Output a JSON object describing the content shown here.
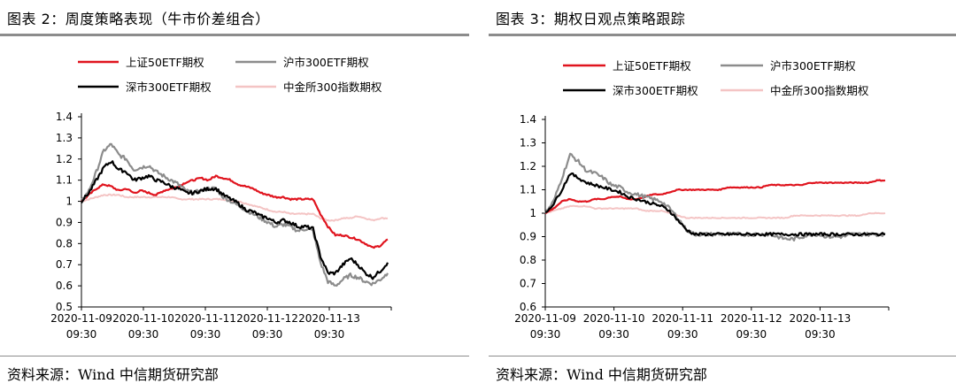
{
  "panels": [
    {
      "title": "图表 2：周度策略表现（牛市价差组合）",
      "source": "资料来源：Wind 中信期货研究部"
    },
    {
      "title": "图表 3：期权日观点策略跟踪",
      "source": "资料来源：Wind 中信期货研究部"
    }
  ],
  "chart_data": [
    {
      "type": "line",
      "title": "图表 2：周度策略表现（牛市价差组合）",
      "ylim": [
        0.5,
        1.4
      ],
      "yticks": [
        "1.4",
        "1.3",
        "1.2",
        "1.1",
        "1",
        "0.9",
        "0.8",
        "0.7",
        "0.6",
        "0.5"
      ],
      "x_date_labels": [
        "2020-11-09",
        "2020-11-10",
        "2020-11-11",
        "2020-11-12",
        "2020-11-13"
      ],
      "x_time_label": "09:30",
      "legend_position": "top",
      "series": [
        {
          "name": "上证50ETF期权",
          "color": "#e0141e",
          "noise": 0.004,
          "values": [
            1.0,
            1.03,
            1.06,
            1.08,
            1.07,
            1.05,
            1.06,
            1.04,
            1.05,
            1.04,
            1.03,
            1.05,
            1.06,
            1.07,
            1.09,
            1.1,
            1.11,
            1.1,
            1.12,
            1.11,
            1.1,
            1.08,
            1.07,
            1.06,
            1.04,
            1.03,
            1.02,
            1.02,
            1.01,
            1.01,
            1.01,
            1.01,
            0.94,
            0.88,
            0.84,
            0.84,
            0.83,
            0.82,
            0.8,
            0.78,
            0.79,
            0.82
          ]
        },
        {
          "name": "沪市300ETF期权",
          "color": "#8c8c8c",
          "noise": 0.009,
          "values": [
            1.0,
            1.05,
            1.14,
            1.24,
            1.27,
            1.22,
            1.2,
            1.15,
            1.16,
            1.17,
            1.14,
            1.12,
            1.1,
            1.08,
            1.05,
            1.04,
            1.05,
            1.06,
            1.06,
            1.02,
            1.0,
            0.98,
            0.96,
            0.94,
            0.92,
            0.9,
            0.88,
            0.89,
            0.88,
            0.86,
            0.87,
            0.86,
            0.71,
            0.62,
            0.6,
            0.63,
            0.65,
            0.64,
            0.62,
            0.61,
            0.63,
            0.66
          ]
        },
        {
          "name": "深市300ETF期权",
          "color": "#000000",
          "noise": 0.008,
          "values": [
            1.0,
            1.04,
            1.1,
            1.16,
            1.19,
            1.15,
            1.14,
            1.1,
            1.11,
            1.12,
            1.1,
            1.09,
            1.07,
            1.06,
            1.04,
            1.04,
            1.05,
            1.06,
            1.06,
            1.03,
            1.01,
            0.99,
            0.96,
            0.95,
            0.93,
            0.92,
            0.9,
            0.91,
            0.9,
            0.88,
            0.88,
            0.87,
            0.74,
            0.66,
            0.66,
            0.7,
            0.73,
            0.7,
            0.66,
            0.64,
            0.67,
            0.71
          ]
        },
        {
          "name": "中金所300指数期权",
          "color": "#f4c4c4",
          "noise": 0.003,
          "values": [
            1.0,
            1.01,
            1.02,
            1.03,
            1.03,
            1.03,
            1.02,
            1.02,
            1.02,
            1.02,
            1.02,
            1.02,
            1.02,
            1.01,
            1.01,
            1.01,
            1.01,
            1.01,
            1.01,
            1.01,
            1.0,
            1.0,
            0.99,
            0.98,
            0.97,
            0.96,
            0.95,
            0.95,
            0.94,
            0.94,
            0.94,
            0.94,
            0.92,
            0.91,
            0.91,
            0.92,
            0.92,
            0.93,
            0.92,
            0.91,
            0.92,
            0.92
          ]
        }
      ]
    },
    {
      "type": "line",
      "title": "图表 3：期权日观点策略跟踪",
      "ylim": [
        0.6,
        1.4
      ],
      "yticks": [
        "1.4",
        "1.3",
        "1.2",
        "1.1",
        "1",
        "0.9",
        "0.8",
        "0.7",
        "0.6"
      ],
      "x_date_labels": [
        "2020-11-09",
        "2020-11-10",
        "2020-11-11",
        "2020-11-12",
        "2020-11-13"
      ],
      "x_time_label": "09:30",
      "legend_position": "top",
      "series": [
        {
          "name": "上证50ETF期权",
          "color": "#e0141e",
          "noise": 0.002,
          "values": [
            1.0,
            1.02,
            1.05,
            1.06,
            1.05,
            1.05,
            1.06,
            1.06,
            1.07,
            1.07,
            1.06,
            1.06,
            1.07,
            1.08,
            1.08,
            1.09,
            1.1,
            1.1,
            1.1,
            1.1,
            1.1,
            1.1,
            1.11,
            1.11,
            1.11,
            1.11,
            1.11,
            1.12,
            1.12,
            1.12,
            1.12,
            1.12,
            1.13,
            1.13,
            1.13,
            1.13,
            1.13,
            1.13,
            1.13,
            1.13,
            1.14,
            1.14
          ]
        },
        {
          "name": "沪市300ETF期权",
          "color": "#8c8c8c",
          "noise": 0.008,
          "values": [
            1.0,
            1.05,
            1.15,
            1.25,
            1.22,
            1.18,
            1.17,
            1.15,
            1.12,
            1.11,
            1.09,
            1.08,
            1.07,
            1.06,
            1.05,
            1.02,
            0.98,
            0.93,
            0.91,
            0.91,
            0.91,
            0.91,
            0.91,
            0.91,
            0.91,
            0.91,
            0.91,
            0.91,
            0.9,
            0.89,
            0.89,
            0.9,
            0.91,
            0.91,
            0.9,
            0.9,
            0.9,
            0.91,
            0.91,
            0.91,
            0.91,
            0.91
          ]
        },
        {
          "name": "深市300ETF期权",
          "color": "#000000",
          "noise": 0.006,
          "values": [
            1.0,
            1.04,
            1.1,
            1.17,
            1.15,
            1.13,
            1.12,
            1.11,
            1.1,
            1.09,
            1.07,
            1.06,
            1.05,
            1.04,
            1.03,
            1.01,
            0.97,
            0.93,
            0.91,
            0.91,
            0.91,
            0.91,
            0.91,
            0.91,
            0.91,
            0.91,
            0.91,
            0.91,
            0.91,
            0.91,
            0.91,
            0.91,
            0.91,
            0.91,
            0.91,
            0.91,
            0.91,
            0.91,
            0.91,
            0.91,
            0.91,
            0.91
          ]
        },
        {
          "name": "中金所300指数期权",
          "color": "#f4c4c4",
          "noise": 0.002,
          "values": [
            1.0,
            1.01,
            1.02,
            1.03,
            1.03,
            1.03,
            1.02,
            1.02,
            1.02,
            1.02,
            1.02,
            1.02,
            1.01,
            1.01,
            1.01,
            1.0,
            0.99,
            0.98,
            0.98,
            0.98,
            0.98,
            0.98,
            0.98,
            0.98,
            0.98,
            0.98,
            0.98,
            0.98,
            0.98,
            0.98,
            0.99,
            0.99,
            0.99,
            0.99,
            0.99,
            0.99,
            0.99,
            0.99,
            0.99,
            1.0,
            1.0,
            1.0
          ]
        }
      ]
    }
  ]
}
